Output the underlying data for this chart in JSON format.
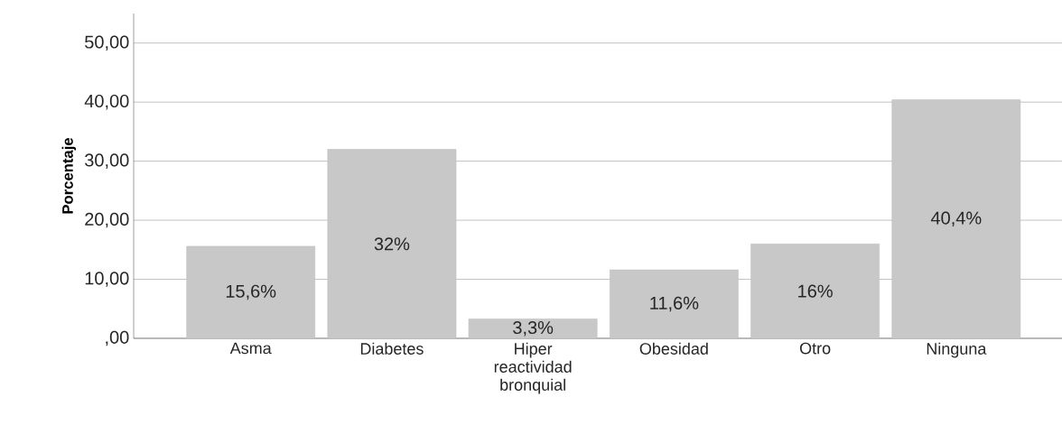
{
  "chart_data": {
    "type": "bar",
    "ylabel": "Porcentaje",
    "categories": [
      "Asma",
      "Diabetes",
      "Hiper reactividad bronquial",
      "Obesidad",
      "Otro",
      "Ninguna"
    ],
    "values": [
      15.6,
      32,
      3.3,
      11.6,
      16,
      40.4
    ],
    "value_labels": [
      "15,6%",
      "32%",
      "3,3%",
      "11,6%",
      "16%",
      "40,4%"
    ],
    "color": "#c8c8c8",
    "ylim": [
      0,
      55
    ],
    "yticks": [
      {
        "value": 0,
        "label": ",00"
      },
      {
        "value": 10,
        "label": "10,00"
      },
      {
        "value": 20,
        "label": "20,00"
      },
      {
        "value": 30,
        "label": "30,00"
      },
      {
        "value": 40,
        "label": "40,00"
      },
      {
        "value": 50,
        "label": "50,00"
      }
    ],
    "grid": "y"
  }
}
